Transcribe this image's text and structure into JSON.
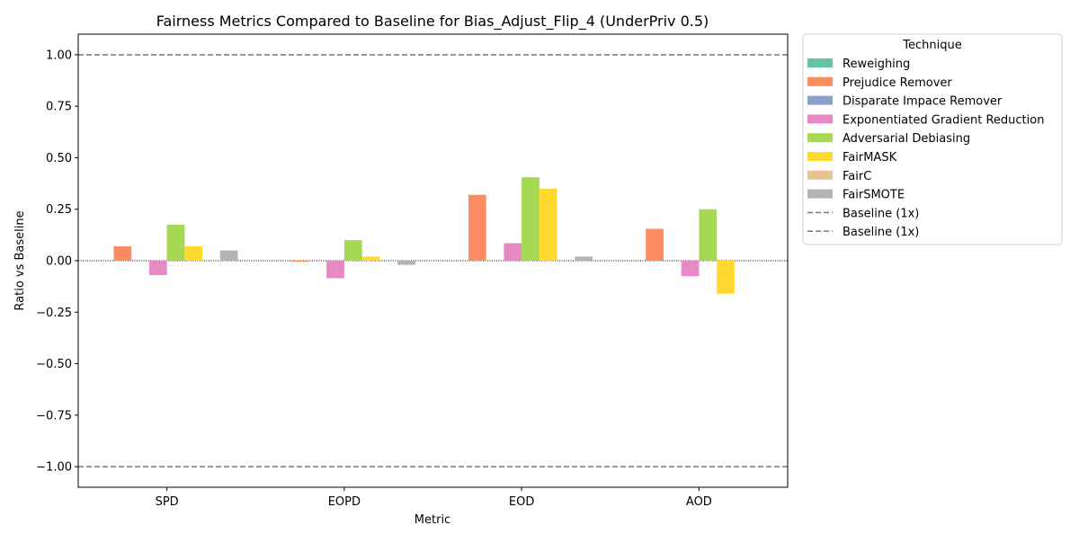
{
  "chart_data": {
    "type": "bar",
    "title": "Fairness Metrics Compared to Baseline for Bias_Adjust_Flip_4 (UnderPriv 0.5)",
    "xlabel": "Metric",
    "ylabel": "Ratio vs Baseline",
    "ylim": [
      -1.1,
      1.1
    ],
    "yticks": [
      1.0,
      0.75,
      0.5,
      0.25,
      0.0,
      -0.25,
      -0.5,
      -0.75,
      -1.0
    ],
    "ytick_labels": [
      "1.00",
      "0.75",
      "0.50",
      "0.25",
      "0.00",
      "−0.25",
      "−0.50",
      "−0.75",
      "−1.00"
    ],
    "categories": [
      "SPD",
      "EOPD",
      "EOD",
      "AOD"
    ],
    "legend": {
      "title": "Technique",
      "placement": "outside-right-top"
    },
    "series": [
      {
        "name": "Reweighing",
        "color": "#66c2a5",
        "values": [
          0.0,
          0.0,
          0.0,
          0.0
        ]
      },
      {
        "name": "Prejudice Remover",
        "color": "#fc8d62",
        "values": [
          0.07,
          -0.005,
          0.32,
          0.155
        ]
      },
      {
        "name": "Disparate Impace Remover",
        "color": "#8da0cb",
        "values": [
          0.0,
          0.0,
          0.0,
          0.0
        ]
      },
      {
        "name": "Exponentiated Gradient Reduction",
        "color": "#e78ac3",
        "values": [
          -0.07,
          -0.085,
          0.085,
          -0.075
        ]
      },
      {
        "name": "Adversarial Debiasing",
        "color": "#a6d854",
        "values": [
          0.175,
          0.1,
          0.405,
          0.25
        ]
      },
      {
        "name": "FairMASK",
        "color": "#ffd92f",
        "values": [
          0.07,
          0.02,
          0.35,
          -0.16
        ]
      },
      {
        "name": "FairC",
        "color": "#e5c494",
        "values": [
          0.0,
          0.0,
          0.0,
          0.0
        ]
      },
      {
        "name": "FairSMOTE",
        "color": "#b3b3b3",
        "values": [
          0.05,
          -0.02,
          0.02,
          0.0
        ]
      }
    ],
    "reference_lines": [
      {
        "label": "Baseline (1x)",
        "y": 1.0,
        "style": "dashed",
        "color": "#808080"
      },
      {
        "label": "Baseline (1x)",
        "y": -1.0,
        "style": "dashed",
        "color": "#808080"
      }
    ],
    "zero_line": {
      "y": 0.0,
      "style": "dotted",
      "color": "#000000"
    },
    "grid": false
  }
}
